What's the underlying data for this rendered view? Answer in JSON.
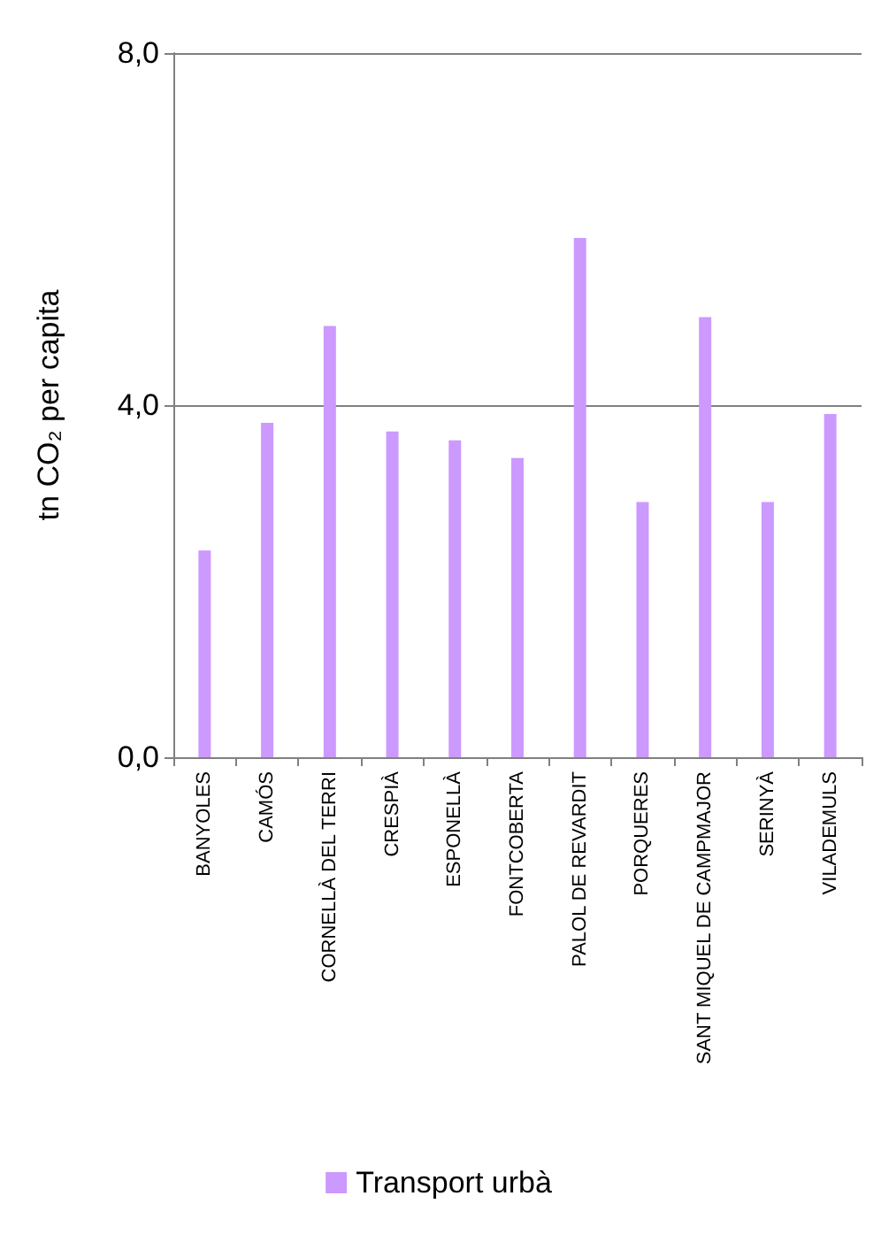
{
  "chart_data": {
    "type": "bar",
    "ylabel": "tn CO₂ per capita",
    "categories": [
      "BANYOLES",
      "CAMÓS",
      "CORNELLÀ DEL TERRI",
      "CRESPIÀ",
      "ESPONELLÀ",
      "FONTCOBERTA",
      "PALOL DE REVARDIT",
      "PORQUERES",
      "SANT MIQUEL DE CAMPMAJOR",
      "SERINYÀ",
      "VILADEMULS"
    ],
    "series": [
      {
        "name": "Transport urbà",
        "color": "#cc99ff",
        "values": [
          2.35,
          3.8,
          4.9,
          3.7,
          3.6,
          3.4,
          5.9,
          2.9,
          5.0,
          2.9,
          3.9
        ]
      }
    ],
    "ylim": [
      0,
      8
    ],
    "yticks": [
      {
        "value": 0,
        "label": "0,0"
      },
      {
        "value": 4,
        "label": "4,0"
      },
      {
        "value": 8,
        "label": "8,0"
      }
    ],
    "grid": "y",
    "legend": "bottom"
  }
}
